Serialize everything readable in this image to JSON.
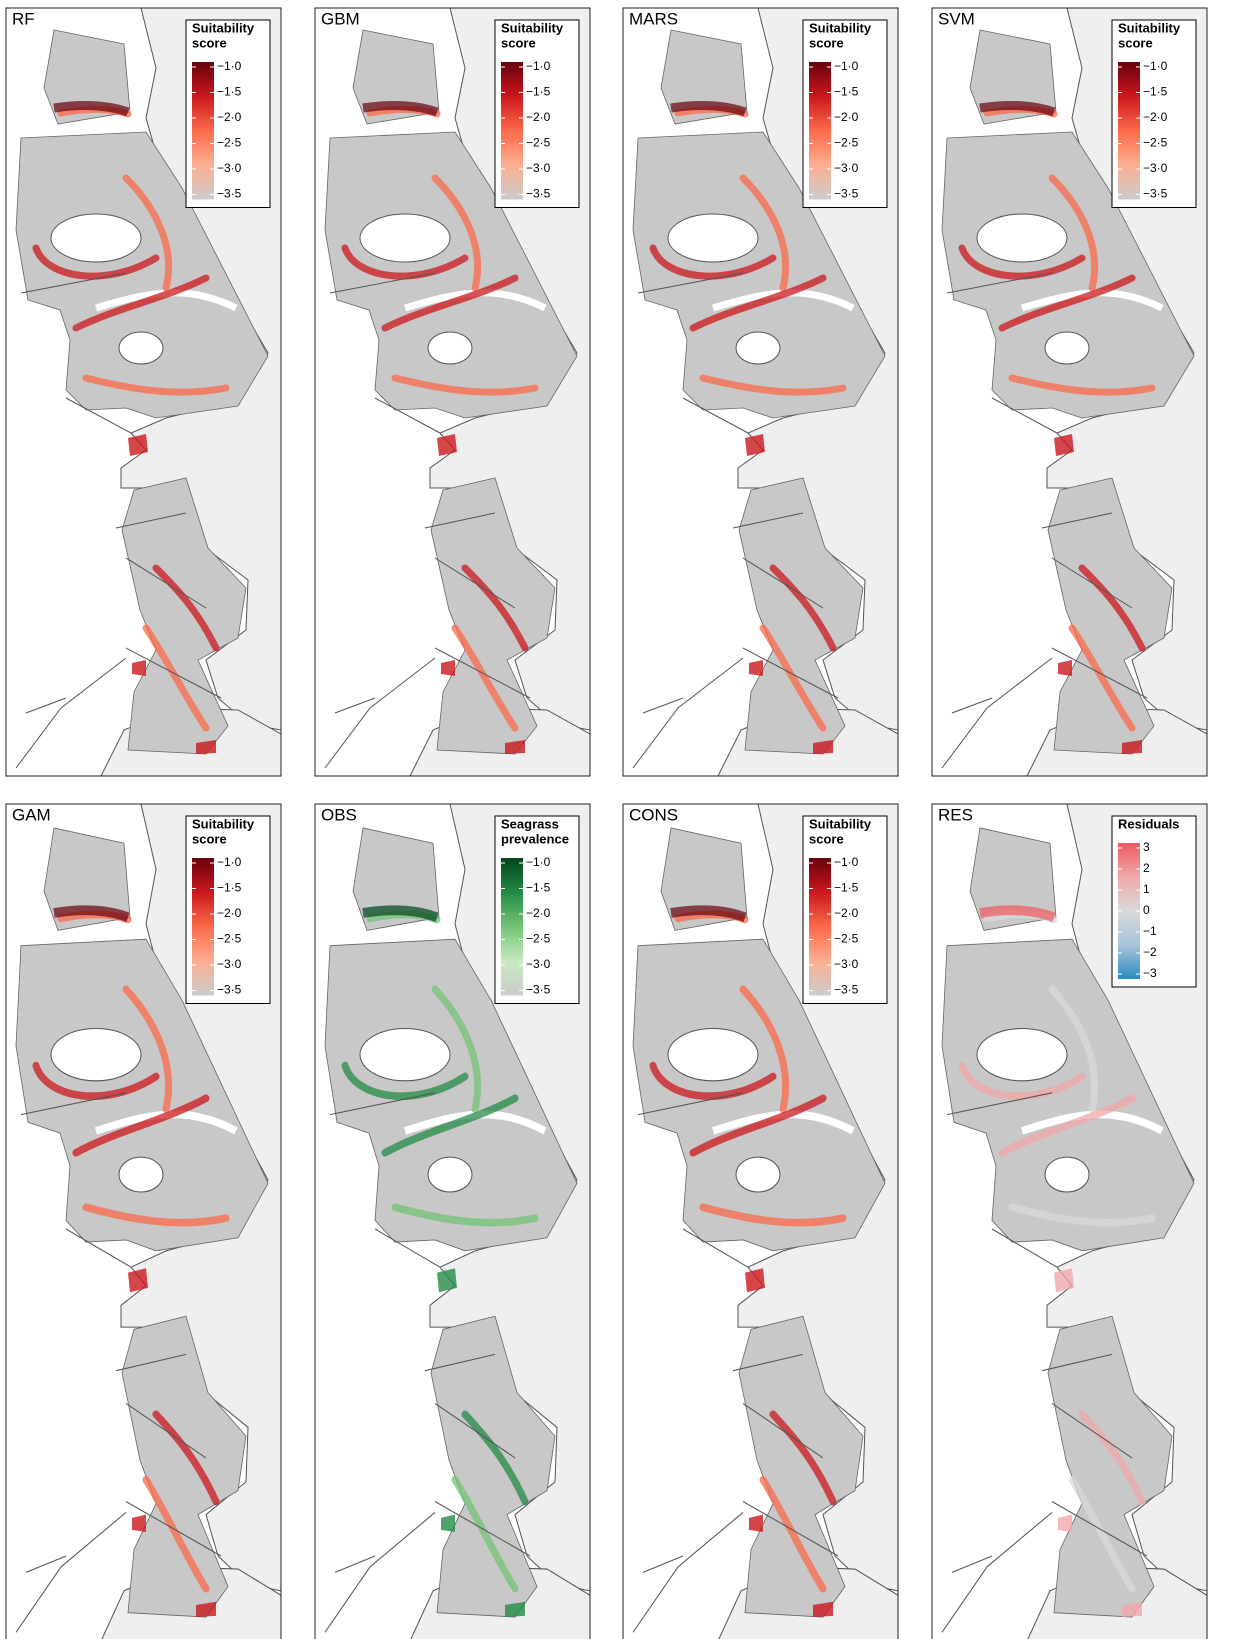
{
  "panels": [
    {
      "label": "RF",
      "legend": {
        "title": [
          "Suitability",
          "score"
        ],
        "lim": [
          -3.5,
          -1.0
        ],
        "colors": [
          "#67000d",
          "#cb181d",
          "#fb6a4a",
          "#fcae91",
          "#cccccc"
        ],
        "ticks": [
          {
            "value": -1.0,
            "label": "−1·0"
          },
          {
            "value": -1.5,
            "label": "−1·5"
          },
          {
            "value": -2.0,
            "label": "−2·0"
          },
          {
            "value": -2.5,
            "label": "−2·5"
          },
          {
            "value": -3.0,
            "label": "−3·0"
          },
          {
            "value": -3.5,
            "label": "−3·5"
          }
        ]
      }
    },
    {
      "label": "GBM",
      "legend": {
        "title": [
          "Suitability",
          "score"
        ],
        "lim": [
          -3.5,
          -1.0
        ],
        "colors": [
          "#67000d",
          "#cb181d",
          "#fb6a4a",
          "#fcae91",
          "#cccccc"
        ],
        "ticks": [
          {
            "value": -1.0,
            "label": "−1·0"
          },
          {
            "value": -1.5,
            "label": "−1·5"
          },
          {
            "value": -2.0,
            "label": "−2·0"
          },
          {
            "value": -2.5,
            "label": "−2·5"
          },
          {
            "value": -3.0,
            "label": "−3·0"
          },
          {
            "value": -3.5,
            "label": "−3·5"
          }
        ]
      }
    },
    {
      "label": "MARS",
      "legend": {
        "title": [
          "Suitability",
          "score"
        ],
        "lim": [
          -3.5,
          -1.0
        ],
        "colors": [
          "#67000d",
          "#cb181d",
          "#fb6a4a",
          "#fcae91",
          "#cccccc"
        ],
        "ticks": [
          {
            "value": -1.0,
            "label": "−1·0"
          },
          {
            "value": -1.5,
            "label": "−1·5"
          },
          {
            "value": -2.0,
            "label": "−2·0"
          },
          {
            "value": -2.5,
            "label": "−2·5"
          },
          {
            "value": -3.0,
            "label": "−3·0"
          },
          {
            "value": -3.5,
            "label": "−3·5"
          }
        ]
      }
    },
    {
      "label": "SVM",
      "legend": {
        "title": [
          "Suitability",
          "score"
        ],
        "lim": [
          -3.5,
          -1.0
        ],
        "colors": [
          "#67000d",
          "#cb181d",
          "#fb6a4a",
          "#fcae91",
          "#cccccc"
        ],
        "ticks": [
          {
            "value": -1.0,
            "label": "−1·0"
          },
          {
            "value": -1.5,
            "label": "−1·5"
          },
          {
            "value": -2.0,
            "label": "−2·0"
          },
          {
            "value": -2.5,
            "label": "−2·5"
          },
          {
            "value": -3.0,
            "label": "−3·0"
          },
          {
            "value": -3.5,
            "label": "−3·5"
          }
        ]
      }
    },
    {
      "label": "GAM",
      "legend": {
        "title": [
          "Suitability",
          "score"
        ],
        "lim": [
          -3.5,
          -1.0
        ],
        "colors": [
          "#67000d",
          "#cb181d",
          "#fb6a4a",
          "#fcae91",
          "#cccccc"
        ],
        "ticks": [
          {
            "value": -1.0,
            "label": "−1·0"
          },
          {
            "value": -1.5,
            "label": "−1·5"
          },
          {
            "value": -2.0,
            "label": "−2·0"
          },
          {
            "value": -2.5,
            "label": "−2·5"
          },
          {
            "value": -3.0,
            "label": "−3·0"
          },
          {
            "value": -3.5,
            "label": "−3·5"
          }
        ]
      }
    },
    {
      "label": "OBS",
      "legend": {
        "title": [
          "Seagrass",
          "prevalence"
        ],
        "lim": [
          -3.5,
          -1.0
        ],
        "colors": [
          "#00441b",
          "#238b45",
          "#74c476",
          "#c7e9c0",
          "#cccccc"
        ],
        "ticks": [
          {
            "value": -1.0,
            "label": "−1·0"
          },
          {
            "value": -1.5,
            "label": "−1·5"
          },
          {
            "value": -2.0,
            "label": "−2·0"
          },
          {
            "value": -2.5,
            "label": "−2·5"
          },
          {
            "value": -3.0,
            "label": "−3·0"
          },
          {
            "value": -3.5,
            "label": "−3·5"
          }
        ]
      }
    },
    {
      "label": "CONS",
      "legend": {
        "title": [
          "Suitability",
          "score"
        ],
        "lim": [
          -3.5,
          -1.0
        ],
        "colors": [
          "#67000d",
          "#cb181d",
          "#fb6a4a",
          "#fcae91",
          "#cccccc"
        ],
        "ticks": [
          {
            "value": -1.0,
            "label": "−1·0"
          },
          {
            "value": -1.5,
            "label": "−1·5"
          },
          {
            "value": -2.0,
            "label": "−2·0"
          },
          {
            "value": -2.5,
            "label": "−2·5"
          },
          {
            "value": -3.0,
            "label": "−3·0"
          },
          {
            "value": -3.5,
            "label": "−3·5"
          }
        ]
      }
    },
    {
      "label": "RES",
      "legend": {
        "title": [
          "Residuals"
        ],
        "lim": [
          -3,
          3
        ],
        "colors": [
          "#ef5a5f",
          "#f0a8aa",
          "#d9d9d9",
          "#a6c4dc",
          "#2b8cbe"
        ],
        "ticks": [
          3,
          2,
          1,
          0,
          {
            "value": -1,
            "label": "−1"
          },
          {
            "value": -2,
            "label": "−2"
          },
          {
            "value": -3,
            "label": "−3"
          }
        ]
      }
    }
  ]
}
